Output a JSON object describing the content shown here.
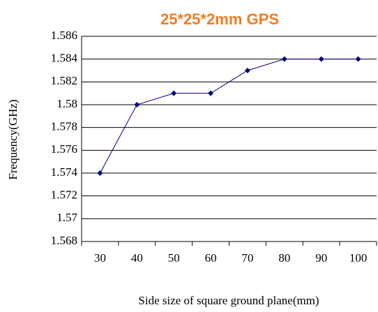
{
  "chart_data": {
    "type": "line",
    "title": "25*25*2mm GPS",
    "title_color": "#f07c22",
    "x_label": "Side size of square ground plane(mm)",
    "y_label": "Frequency(GHz)",
    "categories": [
      "30",
      "40",
      "50",
      "60",
      "70",
      "80",
      "90",
      "100"
    ],
    "series": [
      {
        "name": "Frequency",
        "color": "#000080",
        "values": [
          1.574,
          1.58,
          1.581,
          1.581,
          1.583,
          1.584,
          1.584,
          1.584
        ]
      }
    ],
    "ylim": [
      1.568,
      1.586
    ],
    "yticks": [
      1.568,
      1.57,
      1.572,
      1.574,
      1.576,
      1.578,
      1.58,
      1.582,
      1.584,
      1.586
    ],
    "grid": true
  }
}
